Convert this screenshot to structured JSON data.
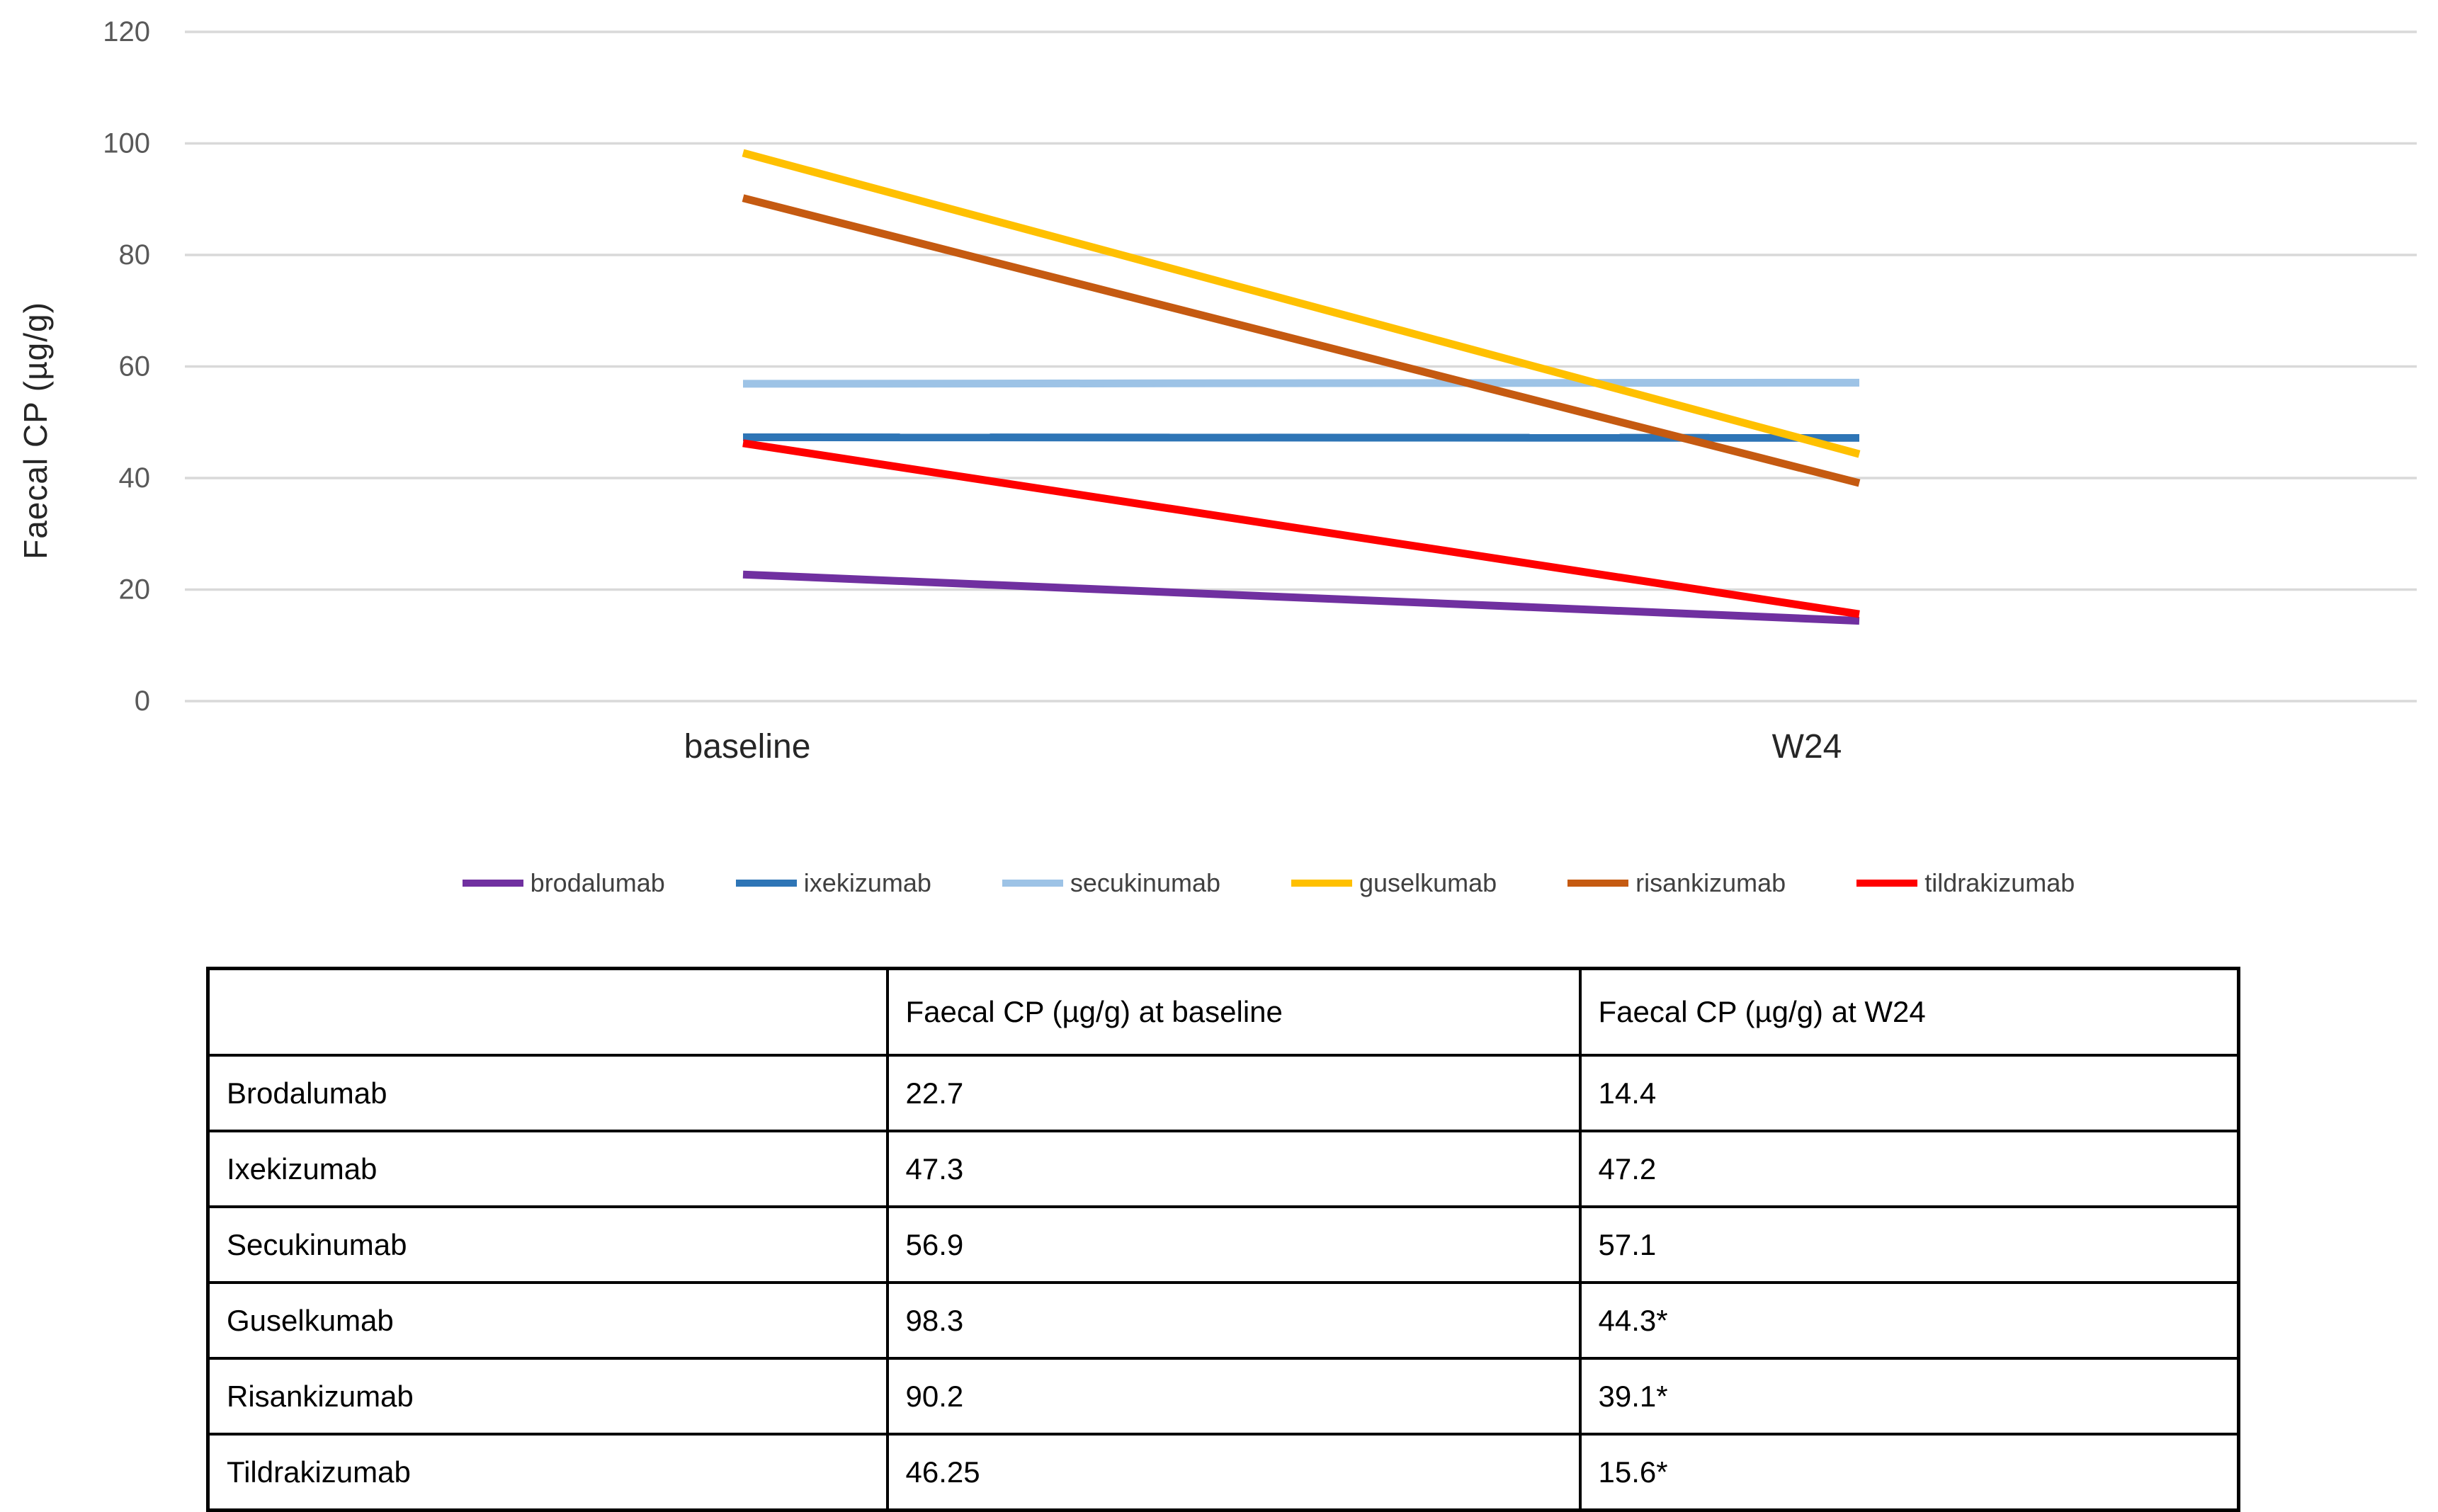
{
  "chart_data": {
    "type": "line",
    "title": "",
    "xlabel": "",
    "ylabel": "Faecal CP (µg/g)",
    "ylim": [
      0,
      120
    ],
    "yticks": [
      0,
      20,
      40,
      60,
      80,
      100,
      120
    ],
    "grid": true,
    "legend_position": "bottom",
    "categories": [
      "baseline",
      "W24"
    ],
    "series": [
      {
        "name": "brodalumab",
        "color": "#7030A0",
        "values": [
          22.7,
          14.4
        ]
      },
      {
        "name": "ixekizumab",
        "color": "#2E75B6",
        "values": [
          47.3,
          47.2
        ]
      },
      {
        "name": "secukinumab",
        "color": "#9DC3E6",
        "values": [
          56.9,
          57.1
        ]
      },
      {
        "name": "guselkumab",
        "color": "#FFC000",
        "values": [
          98.3,
          44.3
        ]
      },
      {
        "name": "risankizumab",
        "color": "#C55A11",
        "values": [
          90.2,
          39.1
        ]
      },
      {
        "name": "tildrakizumab",
        "color": "#FF0000",
        "values": [
          46.25,
          15.6
        ]
      }
    ]
  },
  "table": {
    "columns": [
      "",
      "Faecal CP (µg/g) at baseline",
      "Faecal CP (µg/g) at W24"
    ],
    "rows": [
      [
        "Brodalumab",
        "22.7",
        "14.4"
      ],
      [
        "Ixekizumab",
        "47.3",
        "47.2"
      ],
      [
        "Secukinumab",
        "56.9",
        "57.1"
      ],
      [
        "Guselkumab",
        "98.3",
        "44.3*"
      ],
      [
        "Risankizumab",
        "90.2",
        "39.1*"
      ],
      [
        "Tildrakizumab",
        "46.25",
        "15.6*"
      ]
    ]
  },
  "styles": {
    "gridline_color": "#D9D9D9",
    "y_tick_label_color": "#595959",
    "axis_title_color": "#262626",
    "x_label_color": "#262626",
    "legend_text_color": "#404040",
    "table_border_color": "#000000"
  }
}
